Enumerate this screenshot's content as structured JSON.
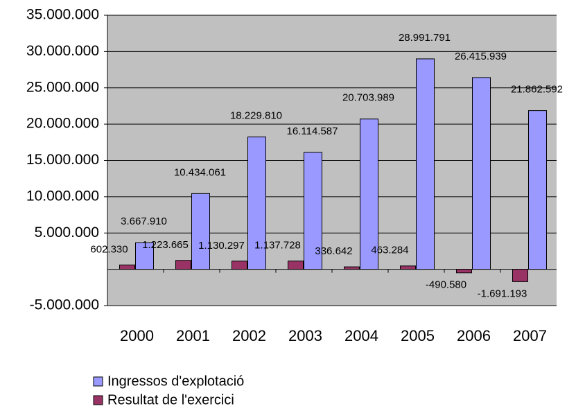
{
  "chart_data": {
    "type": "bar",
    "categories": [
      "2000",
      "2001",
      "2002",
      "2003",
      "2004",
      "2005",
      "2006",
      "2007"
    ],
    "series": [
      {
        "name": "Ingressos d'explotació",
        "color": "#9999ff",
        "values": [
          3667910,
          10434061,
          18229810,
          16114587,
          20703989,
          28991791,
          26415939,
          21862592
        ],
        "value_labels": [
          "3.667.910",
          "10.434.061",
          "18.229.810",
          "16.114.587",
          "20.703.989",
          "28.991.791",
          "26.415.939",
          "21.862.592"
        ]
      },
      {
        "name": "Resultat de l'exercici",
        "color": "#993366",
        "values": [
          602330,
          1223665,
          1130297,
          1137728,
          336642,
          463284,
          -490580,
          -1691193
        ],
        "value_labels": [
          "602.330",
          "1.223.665",
          "1.130.297",
          "1.137.728",
          "336.642",
          "463.284",
          "-490.580",
          "-1.691.193"
        ]
      }
    ],
    "ylim": [
      -5000000,
      35000000
    ],
    "yticks": [
      {
        "value": -5000000,
        "label": "-5.000.000"
      },
      {
        "value": 5000000,
        "label": "5.000.000"
      },
      {
        "value": 10000000,
        "label": "10.000.000"
      },
      {
        "value": 15000000,
        "label": "15.000.000"
      },
      {
        "value": 20000000,
        "label": "20.000.000"
      },
      {
        "value": 25000000,
        "label": "25.000.000"
      },
      {
        "value": 30000000,
        "label": "30.000.000"
      },
      {
        "value": 35000000,
        "label": "35.000.000"
      }
    ],
    "grid": true
  }
}
